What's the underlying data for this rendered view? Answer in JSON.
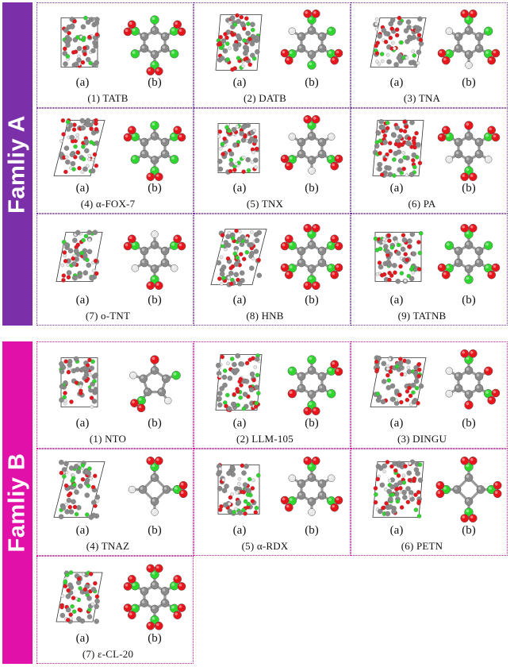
{
  "colors": {
    "family_a": "#7b2fa8",
    "family_b": "#e010a8",
    "carbon": "#8a8a8a",
    "oxygen": "#e8161c",
    "nitrogen": "#2ed62e",
    "hydrogen": "#e8e8e8"
  },
  "families": [
    {
      "label": "Famliy A",
      "compounds": [
        {
          "num": "(1)",
          "name": "TATB",
          "sub_a": "(a)",
          "sub_b": "(b)"
        },
        {
          "num": "(2)",
          "name": "DATB",
          "sub_a": "(a)",
          "sub_b": "(b)"
        },
        {
          "num": "(3)",
          "name": "TNA",
          "sub_a": "(a)",
          "sub_b": "(b)"
        },
        {
          "num": "(4)",
          "name": "α-FOX-7",
          "sub_a": "(a)",
          "sub_b": "(b)"
        },
        {
          "num": "(5)",
          "name": "TNX",
          "sub_a": "(a)",
          "sub_b": "(b)"
        },
        {
          "num": "(6)",
          "name": "PA",
          "sub_a": "(a)",
          "sub_b": "(b)"
        },
        {
          "num": "(7)",
          "name": "o-TNT",
          "sub_a": "(a)",
          "sub_b": "(b)"
        },
        {
          "num": "(8)",
          "name": "HNB",
          "sub_a": "(a)",
          "sub_b": "(b)"
        },
        {
          "num": "(9)",
          "name": "TATNB",
          "sub_a": "(a)",
          "sub_b": "(b)"
        }
      ]
    },
    {
      "label": "Famliy B",
      "compounds": [
        {
          "num": "(1)",
          "name": "NTO",
          "sub_a": "(a)",
          "sub_b": "(b)"
        },
        {
          "num": "(2)",
          "name": "LLM-105",
          "sub_a": "(a)",
          "sub_b": "(b)"
        },
        {
          "num": "(3)",
          "name": "DINGU",
          "sub_a": "(a)",
          "sub_b": "(b)"
        },
        {
          "num": "(4)",
          "name": "TNAZ",
          "sub_a": "(a)",
          "sub_b": "(b)"
        },
        {
          "num": "(5)",
          "name": "α-RDX",
          "sub_a": "(a)",
          "sub_b": "(b)"
        },
        {
          "num": "(6)",
          "name": "PETN",
          "sub_a": "(a)",
          "sub_b": "(b)"
        },
        {
          "num": "(7)",
          "name": "ε-CL-20",
          "sub_a": "(a)",
          "sub_b": "(b)"
        }
      ]
    }
  ]
}
